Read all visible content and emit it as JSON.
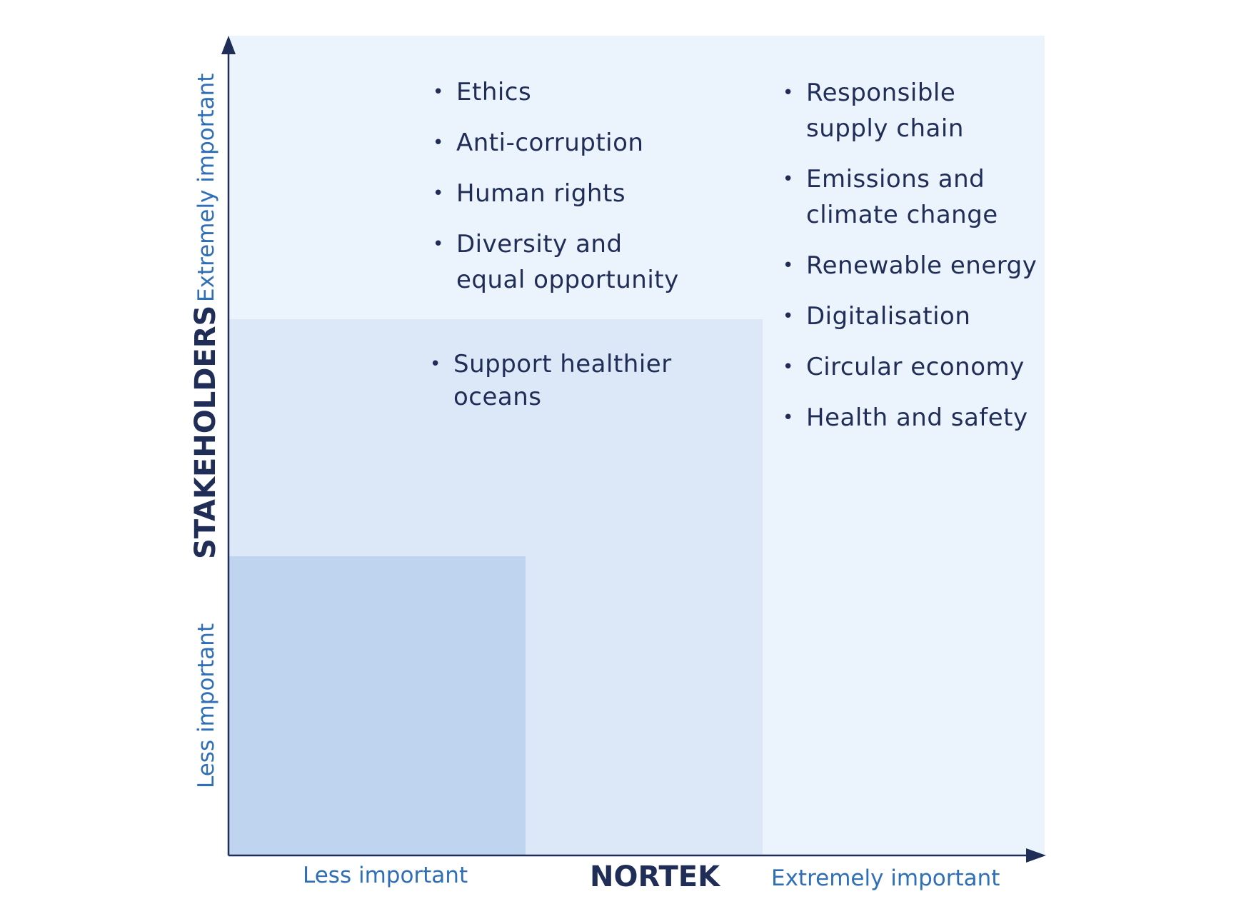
{
  "axes": {
    "x": {
      "title": "NORTEK",
      "low_label": "Less important",
      "high_label": "Extremely important"
    },
    "y": {
      "title": "STAKEHOLDERS",
      "low_label": "Less important",
      "high_label": "Extremely important"
    }
  },
  "zones": {
    "top_middle": [
      "Ethics",
      "Anti-corruption",
      "Human rights",
      "Diversity and equal opportunity"
    ],
    "top_right": [
      "Responsible supply chain",
      "Emissions and climate change",
      "Renewable energy",
      "Digitalisation",
      "Circular economy",
      "Health and safety"
    ],
    "middle": [
      "Support healthier oceans"
    ]
  },
  "colors": {
    "outer_zone": "#ebf3fc",
    "middle_zone": "#dce8f8",
    "inner_zone": "#bfd4ef",
    "axis": "#1f2d57",
    "label_blue": "#2f6fb7",
    "text_dark": "#1f2d57"
  }
}
